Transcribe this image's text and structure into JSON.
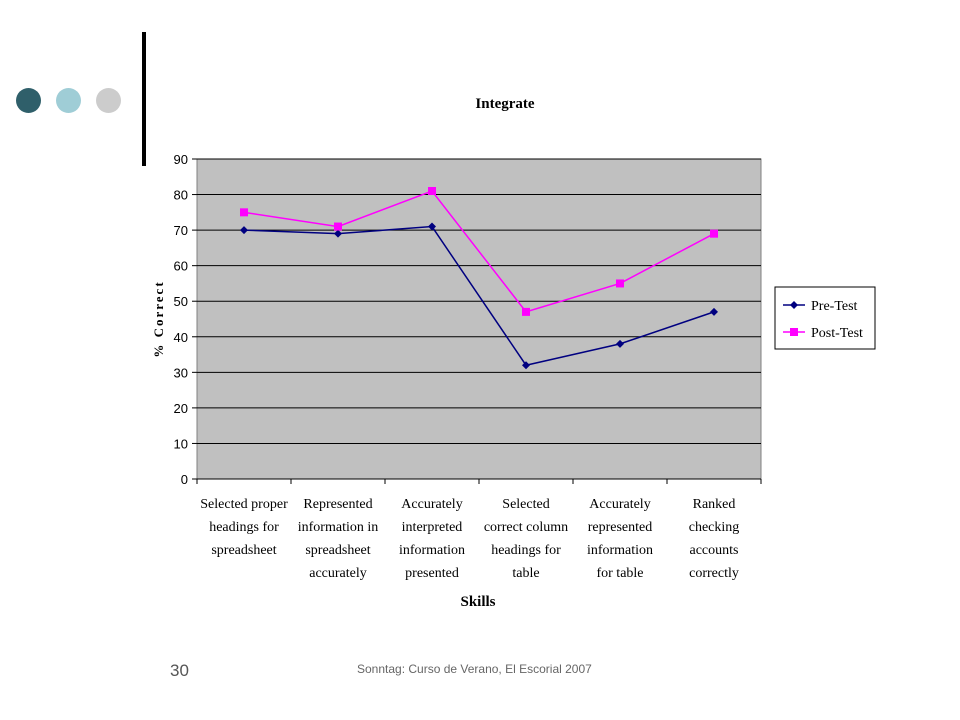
{
  "slide": {
    "number": "30",
    "footer": "Sonntag: Curso de Verano, El Escorial 2007"
  },
  "colors": {
    "plot_bg": "#c0c0c0",
    "pre": "#000080",
    "post": "#ff00ff",
    "dot1": "#2f5f6a",
    "dot2": "#9fcdd6",
    "dot3": "#cccccc"
  },
  "chart_data": {
    "type": "line",
    "title": "Integrate",
    "xlabel": "Skills",
    "ylabel": "% Correct",
    "ylim": [
      0,
      90
    ],
    "yticks": [
      0,
      10,
      20,
      30,
      40,
      50,
      60,
      70,
      80,
      90
    ],
    "grid": true,
    "legend_position": "right",
    "categories": [
      [
        "Selected proper",
        "headings for",
        "spreadsheet"
      ],
      [
        "Represented",
        "information in",
        "spreadsheet",
        "accurately"
      ],
      [
        "Accurately",
        "interpreted",
        "information",
        "presented"
      ],
      [
        "Selected",
        "correct column",
        "headings for",
        "table"
      ],
      [
        "Accurately",
        "represented",
        "information",
        "for  table"
      ],
      [
        "Ranked",
        "checking",
        "accounts",
        "correctly"
      ]
    ],
    "series": [
      {
        "name": "Pre-Test",
        "marker": "diamond",
        "values": [
          70,
          69,
          71,
          32,
          38,
          47
        ]
      },
      {
        "name": "Post-Test",
        "marker": "square",
        "values": [
          75,
          71,
          81,
          47,
          55,
          69
        ]
      }
    ]
  }
}
